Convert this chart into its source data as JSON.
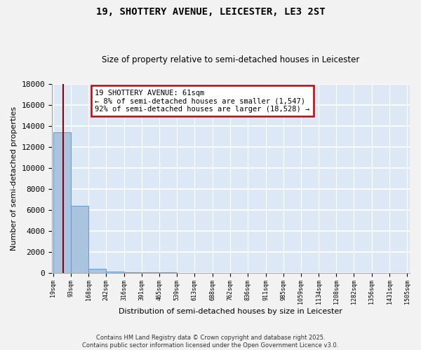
{
  "title": "19, SHOTTERY AVENUE, LEICESTER, LE3 2ST",
  "subtitle": "Size of property relative to semi-detached houses in Leicester",
  "xlabel": "Distribution of semi-detached houses by size in Leicester",
  "ylabel": "Number of semi-detached properties",
  "bar_edges": [
    19,
    93,
    168,
    242,
    316,
    391,
    465,
    539,
    613,
    688,
    762,
    836,
    911,
    985,
    1059,
    1134,
    1208,
    1282,
    1356,
    1431,
    1505
  ],
  "bar_values": [
    13400,
    6350,
    380,
    120,
    60,
    30,
    15,
    10,
    7,
    5,
    4,
    3,
    2,
    2,
    1,
    1,
    1,
    1,
    0,
    0
  ],
  "property_size": 61,
  "annotation_title": "19 SHOTTERY AVENUE: 61sqm",
  "annotation_line1": "← 8% of semi-detached houses are smaller (1,547)",
  "annotation_line2": "92% of semi-detached houses are larger (18,528) →",
  "bar_color": "#aac4e0",
  "bar_edge_color": "#6699cc",
  "vline_color": "#8b0000",
  "annotation_box_color": "#ffffff",
  "annotation_box_edge": "#cc0000",
  "bg_color": "#dce8f5",
  "grid_color": "#ffffff",
  "fig_bg_color": "#f2f2f2",
  "ylim": [
    0,
    18000
  ],
  "yticks": [
    0,
    2000,
    4000,
    6000,
    8000,
    10000,
    12000,
    14000,
    16000,
    18000
  ],
  "footer_line1": "Contains HM Land Registry data © Crown copyright and database right 2025.",
  "footer_line2": "Contains public sector information licensed under the Open Government Licence v3.0."
}
